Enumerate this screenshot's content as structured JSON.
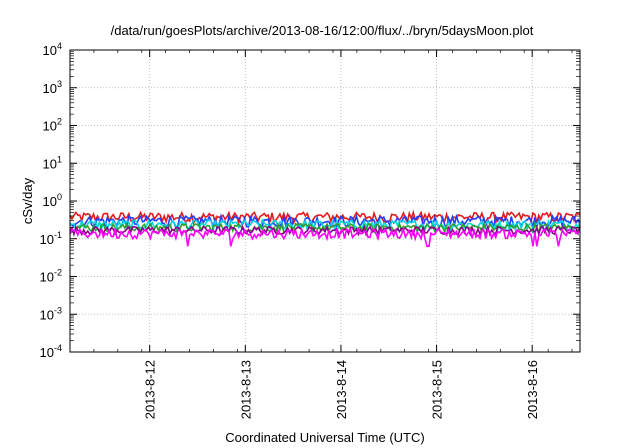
{
  "chart_data": {
    "type": "line",
    "title": "/data/run/goesPlots/archive/2013-08-16/12:00/flux/../bryn/5daysMoon.plot",
    "xlabel": "Coordinated Universal Time (UTC)",
    "ylabel": "cSv/day",
    "yscale": "log",
    "ylim": [
      0.0001,
      10000
    ],
    "y_ticks": [
      {
        "base": "10",
        "exp": "-4",
        "value": 0.0001
      },
      {
        "base": "10",
        "exp": "-3",
        "value": 0.001
      },
      {
        "base": "10",
        "exp": "-2",
        "value": 0.01
      },
      {
        "base": "10",
        "exp": "-1",
        "value": 0.1
      },
      {
        "base": "10",
        "exp": "0",
        "value": 1
      },
      {
        "base": "10",
        "exp": "1",
        "value": 10
      },
      {
        "base": "10",
        "exp": "2",
        "value": 100
      },
      {
        "base": "10",
        "exp": "3",
        "value": 1000
      },
      {
        "base": "10",
        "exp": "4",
        "value": 10000
      }
    ],
    "xlim": [
      "2013-08-11 04:00",
      "2013-08-16 12:00"
    ],
    "x_ticks": [
      {
        "label": "2013-8-12",
        "value": "2013-08-12 00:00"
      },
      {
        "label": "2013-8-13",
        "value": "2013-08-13 00:00"
      },
      {
        "label": "2013-8-14",
        "value": "2013-08-14 00:00"
      },
      {
        "label": "2013-8-15",
        "value": "2013-08-15 00:00"
      },
      {
        "label": "2013-8-16",
        "value": "2013-08-16 00:00"
      }
    ],
    "grid": true,
    "legend": "none",
    "series": [
      {
        "color": "#e41a1c",
        "level": 0.38,
        "spread": 0.12
      },
      {
        "color": "#2040ff",
        "level": 0.3,
        "spread": 0.1
      },
      {
        "color": "#00d5e0",
        "level": 0.24,
        "spread": 0.07
      },
      {
        "color": "#2ca02c",
        "level": 0.2,
        "spread": 0.05
      },
      {
        "color": "#8b008b",
        "level": 0.17,
        "spread": 0.04
      },
      {
        "color": "#ff00ff",
        "level": 0.14,
        "spread": 0.04
      }
    ]
  }
}
